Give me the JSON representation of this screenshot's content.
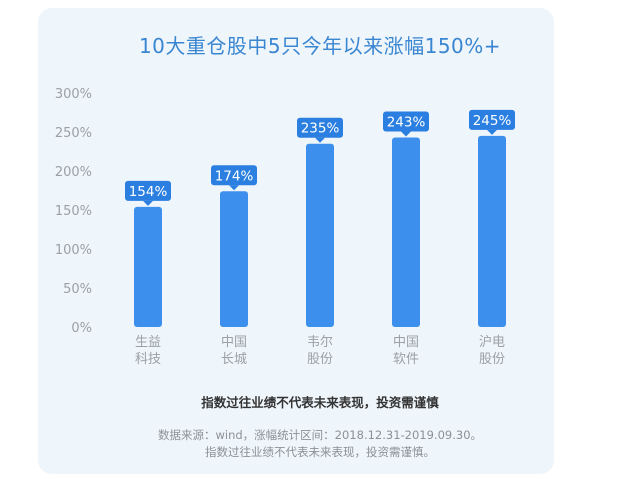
{
  "title": "10大重仓股中5只今年以来涨幅150%+",
  "chart_data": {
    "type": "bar",
    "title": "10大重仓股中5只今年以来涨幅150%+",
    "categories": [
      [
        "生益",
        "科技"
      ],
      [
        "中国",
        "长城"
      ],
      [
        "韦尔",
        "股份"
      ],
      [
        "中国",
        "软件"
      ],
      [
        "沪电",
        "股份"
      ]
    ],
    "values": [
      154,
      174,
      235,
      243,
      245
    ],
    "data_labels": [
      "154%",
      "174%",
      "235%",
      "243%",
      "245%"
    ],
    "yticks": [
      "0%",
      "50%",
      "100%",
      "150%",
      "200%",
      "250%",
      "300%"
    ],
    "ylim": [
      0,
      300
    ],
    "grid": false,
    "colors": {
      "bar": "#3d8fed",
      "label_bg": "#2a7fe0",
      "tick": "#9aa0a6",
      "title": "#3a86d1"
    }
  },
  "note": "指数过往业绩不代表未来表现，投资需谨慎",
  "source_line1": "数据来源：wind，涨幅统计区间：2018.12.31-2019.09.30。",
  "source_line2": "指数过往业绩不代表未来表现，投资需谨慎。"
}
